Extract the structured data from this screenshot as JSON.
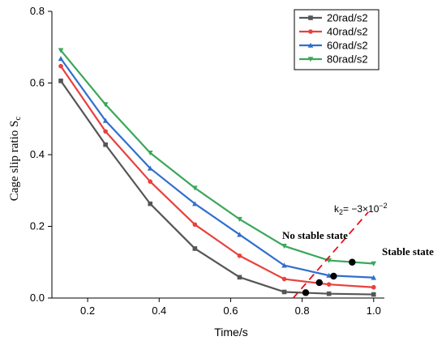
{
  "chart_data": {
    "type": "line",
    "xlabel": "Time/s",
    "ylabel": "Cage slip ratio S",
    "ylabel_sub": "c",
    "xlim": [
      0.1,
      1.03
    ],
    "ylim": [
      0,
      0.8
    ],
    "x_ticks": [
      0.2,
      0.4,
      0.6,
      0.8,
      1.0
    ],
    "x_tick_labels": [
      "0.2",
      "0.4",
      "0.6",
      "0.8",
      "1.0"
    ],
    "y_ticks": [
      0.0,
      0.2,
      0.4,
      0.6,
      0.8
    ],
    "y_tick_labels": [
      "0.0",
      "0.2",
      "0.4",
      "0.6",
      "0.8"
    ],
    "legend_position": "top-right",
    "x": [
      0.125,
      0.25,
      0.375,
      0.5,
      0.625,
      0.75,
      0.875,
      1.0
    ],
    "series": [
      {
        "name": "20rad/s2",
        "color": "#555555",
        "marker": "square",
        "values": [
          0.606,
          0.428,
          0.263,
          0.138,
          0.058,
          0.017,
          0.012,
          0.01
        ]
      },
      {
        "name": "40rad/s2",
        "color": "#e8413c",
        "marker": "circle",
        "values": [
          0.647,
          0.465,
          0.325,
          0.205,
          0.118,
          0.053,
          0.038,
          0.03
        ]
      },
      {
        "name": "60rad/s2",
        "color": "#2f6fce",
        "marker": "triangle-up",
        "values": [
          0.668,
          0.495,
          0.362,
          0.263,
          0.177,
          0.091,
          0.063,
          0.057
        ]
      },
      {
        "name": "80rad/s2",
        "color": "#3aa75a",
        "marker": "triangle-down",
        "values": [
          0.691,
          0.54,
          0.405,
          0.307,
          0.22,
          0.145,
          0.105,
          0.096
        ]
      }
    ],
    "boundary_line": {
      "label_prefix": "k",
      "label_sub": "2",
      "label_suffix": "= −3×10",
      "label_sup": "−2",
      "color": "#e8101a",
      "style": "dashed",
      "start": [
        0.775,
        0.0
      ],
      "end": [
        0.985,
        0.24
      ]
    },
    "intersection_points": [
      {
        "x": 0.81,
        "y": 0.015
      },
      {
        "x": 0.848,
        "y": 0.043
      },
      {
        "x": 0.888,
        "y": 0.061
      },
      {
        "x": 0.94,
        "y": 0.1
      }
    ],
    "annotations": [
      {
        "text": "No stable state",
        "x": 0.76,
        "y": 0.165
      },
      {
        "text": "Stable state",
        "x": 1.03,
        "y": 0.098
      }
    ]
  }
}
